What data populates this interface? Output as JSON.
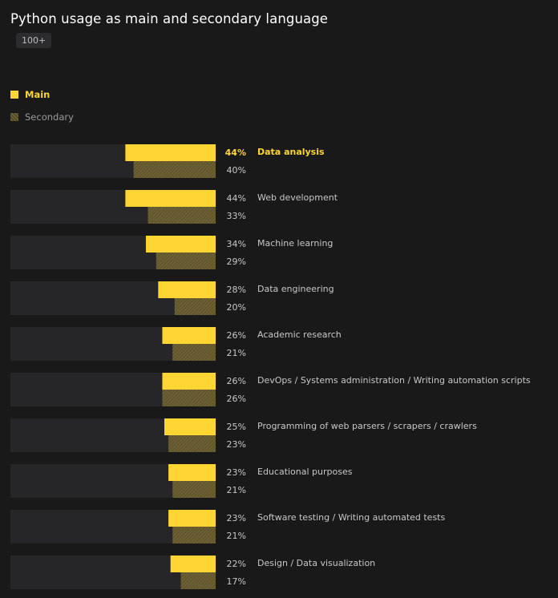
{
  "header": {
    "title": "Python usage as main and secondary language",
    "badge": "100+"
  },
  "legend": {
    "main": "Main",
    "secondary": "Secondary"
  },
  "colors": {
    "main": "#ffd533",
    "secondary": "#6b5f33",
    "track": "#262628",
    "label": "#c8c8c8",
    "highlight": "#ffd533"
  },
  "chart_data": {
    "type": "bar",
    "orientation": "horizontal",
    "categories": [
      "Data analysis",
      "Web development",
      "Machine learning",
      "Data engineering",
      "Academic research",
      "DevOps / Systems administration / Writing automation scripts",
      "Programming of web parsers / scrapers / crawlers",
      "Educational purposes",
      "Software testing / Writing automated tests",
      "Design / Data visualization"
    ],
    "series": [
      {
        "name": "Main",
        "values": [
          44,
          44,
          34,
          28,
          26,
          26,
          25,
          23,
          23,
          22
        ]
      },
      {
        "name": "Secondary",
        "values": [
          40,
          33,
          29,
          20,
          21,
          26,
          23,
          21,
          21,
          17
        ]
      }
    ],
    "value_labels": {
      "main": [
        "44%",
        "44%",
        "34%",
        "28%",
        "26%",
        "26%",
        "25%",
        "23%",
        "23%",
        "22%"
      ],
      "secondary": [
        "40%",
        "33%",
        "29%",
        "20%",
        "21%",
        "26%",
        "23%",
        "21%",
        "21%",
        "17%"
      ]
    },
    "xlim": [
      0,
      100
    ],
    "highlighted_category": "Data analysis",
    "legend_position": "top-left",
    "grid": false
  }
}
